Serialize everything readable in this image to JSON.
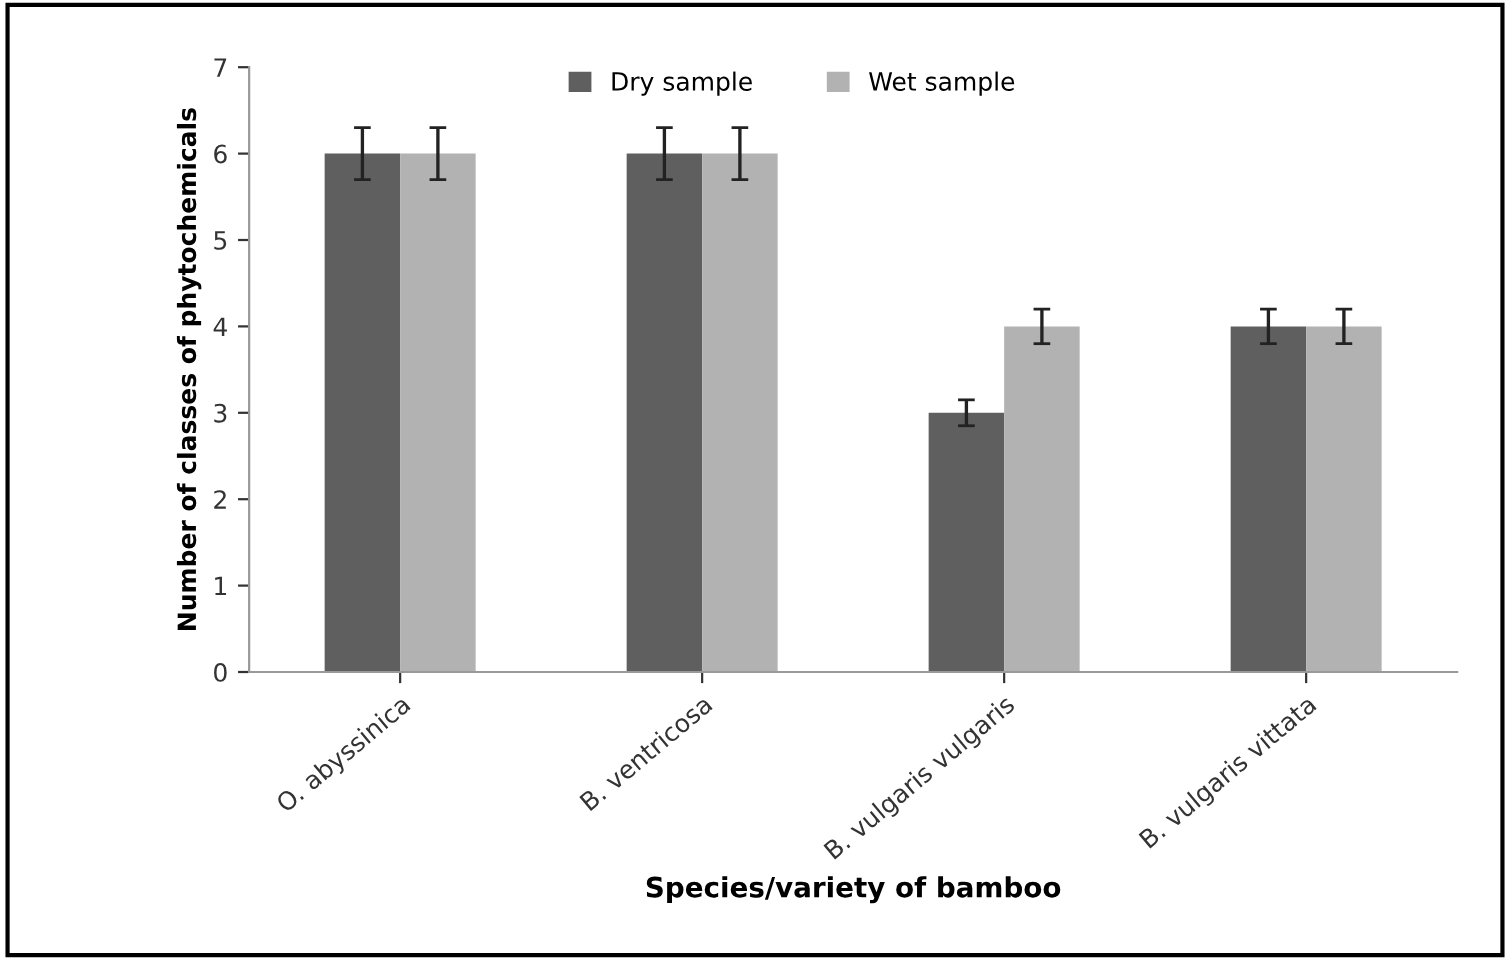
{
  "chart_data": {
    "type": "bar",
    "xlabel": "Species/variety of bamboo",
    "ylabel": "Number of classes of phytochemicals",
    "categories": [
      "O. abyssinica",
      "B. ventricosa",
      "B. vulgaris vulgaris",
      "B. vulgaris vittata"
    ],
    "series": [
      {
        "name": "Dry sample",
        "color": "#5f5f5f",
        "values": [
          6,
          6,
          3,
          4
        ],
        "errors": [
          0.3,
          0.3,
          0.15,
          0.2
        ]
      },
      {
        "name": "Wet sample",
        "color": "#b2b2b2",
        "values": [
          6,
          6,
          4,
          4
        ],
        "errors": [
          0.3,
          0.3,
          0.2,
          0.2
        ]
      }
    ],
    "ylim": [
      0,
      7
    ],
    "yticks": [
      0,
      1,
      2,
      3,
      4,
      5,
      6,
      7
    ],
    "grid": false,
    "legend": "top"
  }
}
